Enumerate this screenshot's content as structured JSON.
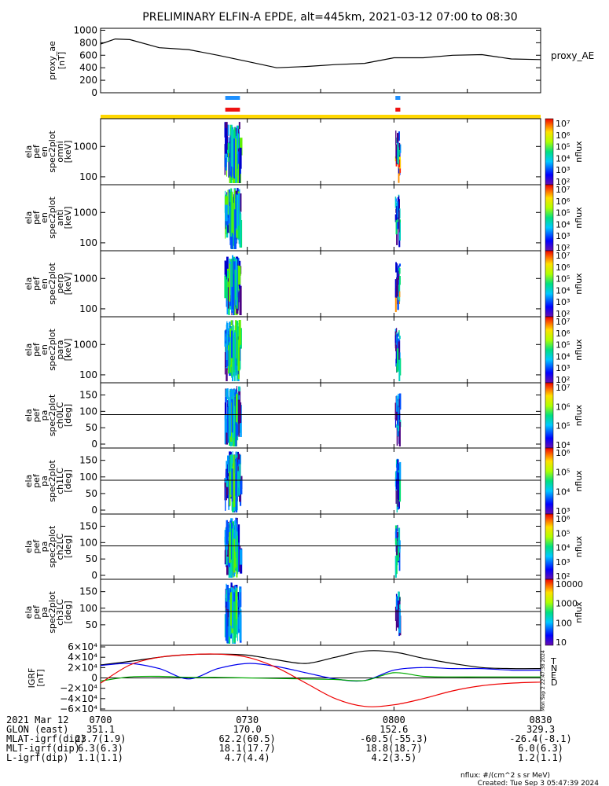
{
  "title": "PRELIMINARY ELFIN-A EPDE, alt=445km, 2021-03-12 07:00 to 08:30",
  "colors": {
    "ae_line": "#000000",
    "bar_blue": "#1e90ff",
    "bar_red": "#ee1111",
    "bar_yellow": "#ffd700",
    "igrf_T": "#000000",
    "igrf_N": "#0000ee",
    "igrf_E": "#00aa00",
    "igrf_D": "#ee0000"
  },
  "panels": [
    {
      "label_lines": [
        "proxy_ae",
        "[nT]"
      ],
      "right_label": "proxy_AE"
    },
    {
      "label_lines": [
        "ela",
        "pef",
        "en",
        "spec2plot",
        "omni",
        "[keV]"
      ],
      "yticks": [
        "1000",
        "100"
      ],
      "cb_label": "nflux",
      "cb_ticks": [
        "10⁷",
        "10⁶",
        "10⁵",
        "10⁴",
        "10³",
        "10²"
      ]
    },
    {
      "label_lines": [
        "ela",
        "pef",
        "en",
        "spec2plot",
        "anti",
        "[keV]"
      ],
      "yticks": [
        "1000",
        "100"
      ],
      "cb_label": "nflux",
      "cb_ticks": [
        "10⁷",
        "10⁶",
        "10⁵",
        "10⁴",
        "10³",
        "10²"
      ]
    },
    {
      "label_lines": [
        "ela",
        "pef",
        "en",
        "spec2plot",
        "perp",
        "[keV]"
      ],
      "yticks": [
        "1000",
        "100"
      ],
      "cb_label": "nflux",
      "cb_ticks": [
        "10⁷",
        "10⁶",
        "10⁵",
        "10⁴",
        "10³",
        "10²"
      ]
    },
    {
      "label_lines": [
        "ela",
        "pef",
        "en",
        "spec2plot",
        "para",
        "[keV]"
      ],
      "yticks": [
        "1000",
        "100"
      ],
      "cb_label": "nflux",
      "cb_ticks": [
        "10⁷",
        "10⁶",
        "10⁵",
        "10⁴",
        "10³",
        "10²"
      ]
    },
    {
      "label_lines": [
        "ela",
        "pef",
        "pa",
        "spec2plot",
        "ch0LC",
        "[deg]"
      ],
      "yticks": [
        "150",
        "100",
        "50",
        "0"
      ],
      "cb_label": "nflux",
      "cb_ticks": [
        "10⁷",
        "10⁶",
        "10⁵",
        "10⁴"
      ]
    },
    {
      "label_lines": [
        "ela",
        "pef",
        "pa",
        "spec2plot",
        "ch1LC",
        "[deg]"
      ],
      "yticks": [
        "150",
        "100",
        "50",
        "0"
      ],
      "cb_label": "nflux",
      "cb_ticks": [
        "10⁶",
        "10⁵",
        "10⁴",
        "10³"
      ]
    },
    {
      "label_lines": [
        "ela",
        "pef",
        "pa",
        "spec2plot",
        "ch2LC",
        "[deg]"
      ],
      "yticks": [
        "150",
        "100",
        "50",
        "0"
      ],
      "cb_label": "nflux",
      "cb_ticks": [
        "10⁶",
        "10⁵",
        "10⁴",
        "10³",
        "10²"
      ]
    },
    {
      "label_lines": [
        "ela",
        "pef",
        "pa",
        "spec2plot",
        "ch3LC",
        "[deg]"
      ],
      "yticks": [
        "150",
        "100",
        "50"
      ],
      "cb_label": "nflux",
      "cb_ticks": [
        "10000",
        "1000",
        "100",
        "10"
      ]
    },
    {
      "label_lines": [
        "IGRF",
        "[nT]"
      ],
      "yticks": [
        "6×10⁴",
        "4×10⁴",
        "2×10⁴",
        "0",
        "−2×10⁴",
        "−4×10⁴",
        "−6×10⁴"
      ],
      "legend": [
        "T",
        "N",
        "E",
        "D"
      ]
    }
  ],
  "footer": {
    "rows": [
      {
        "label": "2021 Mar 12",
        "values": [
          "0700",
          "0730",
          "0800",
          "0830"
        ]
      },
      {
        "label": "GLON (east)",
        "values": [
          "351.1",
          "170.0",
          "152.6",
          "329.3"
        ]
      },
      {
        "label": "MLAT-igrf(dip)",
        "values": [
          "23.7(1.9)",
          "62.2(60.5)",
          "-60.5(-55.3)",
          "-26.4(-8.1)"
        ]
      },
      {
        "label": "MLT-igrf(dip)",
        "values": [
          "6.3(6.3)",
          "18.1(17.7)",
          "18.8(18.7)",
          "6.0(6.3)"
        ]
      },
      {
        "label": "L-igrf(dip)",
        "values": [
          "1.1(1.1)",
          "4.7(4.4)",
          "4.2(3.5)",
          "1.2(1.1)"
        ]
      }
    ],
    "note_units": "nflux: #/(cm^2 s sr MeV)",
    "note_created": "Created: Tue Sep  3 05:47:39 2024",
    "side_stamp": "Mon Sep  2 22:47:38 2024"
  },
  "chart_data": [
    {
      "type": "line",
      "series": [
        {
          "name": "proxy_AE",
          "x_min": [
            0,
            3,
            6,
            12,
            18,
            24,
            30,
            36,
            42,
            48,
            54,
            60,
            66,
            72,
            78,
            84,
            90
          ],
          "values": [
            780,
            860,
            850,
            720,
            690,
            600,
            500,
            400,
            420,
            450,
            470,
            560,
            560,
            600,
            610,
            540,
            530
          ]
        }
      ],
      "ylim": [
        0,
        1000
      ],
      "ylabel": "proxy_ae [nT]",
      "yticks": [
        0,
        200,
        400,
        600,
        800,
        1000
      ]
    },
    {
      "type": "heatmap",
      "panel": "omni",
      "ylabel": "ela pef en spec2plot omni [keV]",
      "ylog": true,
      "yticks": [
        100,
        1000
      ],
      "x_intervals_min": [
        [
          25.5,
          28.5
        ],
        [
          60.3,
          61.3
        ]
      ],
      "zlabel": "nflux",
      "zrange_exp": [
        2,
        7
      ]
    },
    {
      "type": "heatmap",
      "panel": "anti",
      "ylog": true,
      "yticks": [
        100,
        1000
      ],
      "x_intervals_min": [
        [
          25.5,
          28.5
        ],
        [
          60.3,
          61.3
        ]
      ],
      "zlabel": "nflux",
      "zrange_exp": [
        2,
        7
      ]
    },
    {
      "type": "heatmap",
      "panel": "perp",
      "ylog": true,
      "yticks": [
        100,
        1000
      ],
      "x_intervals_min": [
        [
          25.5,
          28.5
        ],
        [
          60.3,
          61.3
        ]
      ],
      "zlabel": "nflux",
      "zrange_exp": [
        2,
        7
      ]
    },
    {
      "type": "heatmap",
      "panel": "para",
      "ylog": true,
      "yticks": [
        100,
        1000
      ],
      "x_intervals_min": [
        [
          25.5,
          28.5
        ],
        [
          60.3,
          61.3
        ]
      ],
      "zlabel": "nflux",
      "zrange_exp": [
        2,
        7
      ]
    },
    {
      "type": "heatmap",
      "panel": "ch0LC",
      "yticks": [
        0,
        50,
        100,
        150
      ],
      "x_intervals_min": [
        [
          25.5,
          28.5
        ],
        [
          60.3,
          61.3
        ]
      ],
      "zlabel": "nflux",
      "zrange_exp": [
        4,
        7
      ]
    },
    {
      "type": "heatmap",
      "panel": "ch1LC",
      "yticks": [
        0,
        50,
        100,
        150
      ],
      "x_intervals_min": [
        [
          25.5,
          28.5
        ],
        [
          60.3,
          61.3
        ]
      ],
      "zlabel": "nflux",
      "zrange_exp": [
        3,
        6
      ]
    },
    {
      "type": "heatmap",
      "panel": "ch2LC",
      "yticks": [
        0,
        50,
        100,
        150
      ],
      "x_intervals_min": [
        [
          25.5,
          28.5
        ],
        [
          60.3,
          61.3
        ]
      ],
      "zlabel": "nflux",
      "zrange_exp": [
        2,
        6
      ]
    },
    {
      "type": "heatmap",
      "panel": "ch3LC",
      "yticks": [
        50,
        100,
        150
      ],
      "x_intervals_min": [
        [
          25.5,
          28.5
        ],
        [
          60.3,
          61.3
        ]
      ],
      "zlabel": "nflux",
      "zrange": [
        10,
        10000
      ]
    },
    {
      "type": "line",
      "ylabel": "IGRF [nT]",
      "ylim": [
        -60000,
        60000
      ],
      "x_min": [
        0,
        6,
        12,
        18,
        24,
        30,
        36,
        42,
        48,
        54,
        60,
        66,
        72,
        78,
        84,
        90
      ],
      "series": [
        {
          "name": "T",
          "values": [
            25000,
            32000,
            40000,
            45000,
            46000,
            44000,
            35000,
            28000,
            40000,
            52000,
            50000,
            38000,
            28000,
            20000,
            18000,
            18000
          ]
        },
        {
          "name": "N",
          "values": [
            24000,
            28000,
            18000,
            -2000,
            18000,
            28000,
            22000,
            10000,
            -2000,
            -5000,
            15000,
            20000,
            18000,
            18000,
            15000,
            15000
          ]
        },
        {
          "name": "E",
          "values": [
            -6000,
            2000,
            3000,
            1000,
            1000,
            0,
            -1000,
            -2000,
            -3000,
            -5000,
            10000,
            3000,
            2000,
            2000,
            2000,
            2000
          ]
        },
        {
          "name": "D",
          "values": [
            -10000,
            25000,
            40000,
            45000,
            46000,
            40000,
            20000,
            -10000,
            -40000,
            -55000,
            -52000,
            -40000,
            -25000,
            -15000,
            -10000,
            -8000
          ]
        }
      ]
    }
  ]
}
